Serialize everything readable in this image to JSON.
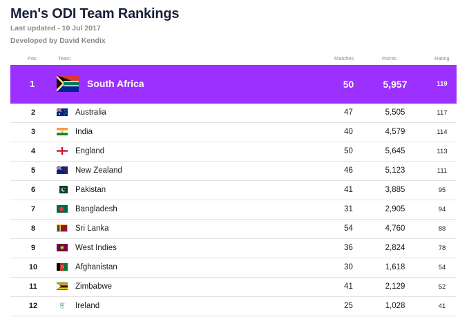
{
  "title": "Men's ODI Team Rankings",
  "last_updated": "Last updated - 10 Jul 2017",
  "developer": "Developed by David Kendix",
  "headers": {
    "pos": "Pos",
    "team": "Team",
    "matches": "Matches",
    "points": "Points",
    "rating": "Rating"
  },
  "colors": {
    "highlight": "#9b30ff",
    "title": "#1a1f3a",
    "muted": "#8a8a8a"
  },
  "leader": {
    "pos": "1",
    "team": "South Africa",
    "matches": "50",
    "points": "5,957",
    "rating": "119",
    "flag": "south-africa-flag"
  },
  "rows": [
    {
      "pos": "2",
      "team": "Australia",
      "matches": "47",
      "points": "5,505",
      "rating": "117",
      "flag": "australia"
    },
    {
      "pos": "3",
      "team": "India",
      "matches": "40",
      "points": "4,579",
      "rating": "114",
      "flag": "india"
    },
    {
      "pos": "4",
      "team": "England",
      "matches": "50",
      "points": "5,645",
      "rating": "113",
      "flag": "england"
    },
    {
      "pos": "5",
      "team": "New Zealand",
      "matches": "46",
      "points": "5,123",
      "rating": "111",
      "flag": "new-zealand"
    },
    {
      "pos": "6",
      "team": "Pakistan",
      "matches": "41",
      "points": "3,885",
      "rating": "95",
      "flag": "pakistan"
    },
    {
      "pos": "7",
      "team": "Bangladesh",
      "matches": "31",
      "points": "2,905",
      "rating": "94",
      "flag": "bangladesh"
    },
    {
      "pos": "8",
      "team": "Sri Lanka",
      "matches": "54",
      "points": "4,760",
      "rating": "88",
      "flag": "sri-lanka"
    },
    {
      "pos": "9",
      "team": "West Indies",
      "matches": "36",
      "points": "2,824",
      "rating": "78",
      "flag": "west-indies"
    },
    {
      "pos": "10",
      "team": "Afghanistan",
      "matches": "30",
      "points": "1,618",
      "rating": "54",
      "flag": "afghanistan"
    },
    {
      "pos": "11",
      "team": "Zimbabwe",
      "matches": "41",
      "points": "2,129",
      "rating": "52",
      "flag": "zimbabwe"
    },
    {
      "pos": "12",
      "team": "Ireland",
      "matches": "25",
      "points": "1,028",
      "rating": "41",
      "flag": "ireland"
    }
  ]
}
